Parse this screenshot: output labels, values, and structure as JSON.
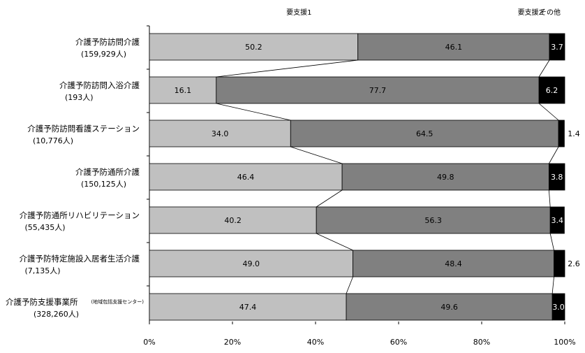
{
  "chart_data": {
    "type": "bar",
    "orientation": "horizontal",
    "stacked": true,
    "percent": true,
    "series": [
      {
        "name": "要支援1",
        "values": [
          50.2,
          16.1,
          34.0,
          46.4,
          40.2,
          49.0,
          47.4
        ],
        "color": "#c0c0c0"
      },
      {
        "name": "要支援2",
        "values": [
          46.1,
          77.7,
          64.5,
          49.8,
          56.3,
          48.4,
          49.6
        ],
        "color": "#808080"
      },
      {
        "name": "その他",
        "values": [
          3.7,
          6.2,
          1.4,
          3.8,
          3.4,
          2.6,
          3.0
        ],
        "color": "#000000"
      }
    ],
    "categories": [
      {
        "name": "介護予防訪問介護",
        "note": "",
        "count": "(159,929人)"
      },
      {
        "name": "介護予防訪問入浴介護",
        "note": "",
        "count": "(193人)"
      },
      {
        "name": "介護予防訪問看護ステーション",
        "note": "",
        "count": "(10,776人)"
      },
      {
        "name": "介護予防通所介護",
        "note": "",
        "count": "(150,125人)"
      },
      {
        "name": "介護予防通所リハビリテーション",
        "note": "",
        "count": "(55,435人)"
      },
      {
        "name": "介護予防特定施設入居者生活介護",
        "note": "",
        "count": "(7,135人)"
      },
      {
        "name": "介護予防支援事業所",
        "note": "(地域包括支援センター)",
        "count": "(328,260人)"
      }
    ],
    "value_labels": [
      [
        "50.2",
        "46.1",
        "3.7"
      ],
      [
        "16.1",
        "77.7",
        "6.2"
      ],
      [
        "34.0",
        "64.5",
        "1.4"
      ],
      [
        "46.4",
        "49.8",
        "3.8"
      ],
      [
        "40.2",
        "56.3",
        "3.4"
      ],
      [
        "49.0",
        "48.4",
        "2.6"
      ],
      [
        "47.4",
        "49.6",
        "3.0"
      ]
    ],
    "x_ticks": [
      "0%",
      "20%",
      "40%",
      "60%",
      "80%",
      "100%"
    ],
    "xlim": [
      0,
      100
    ],
    "legend_position": "top",
    "series_lines": true,
    "grid": false
  }
}
